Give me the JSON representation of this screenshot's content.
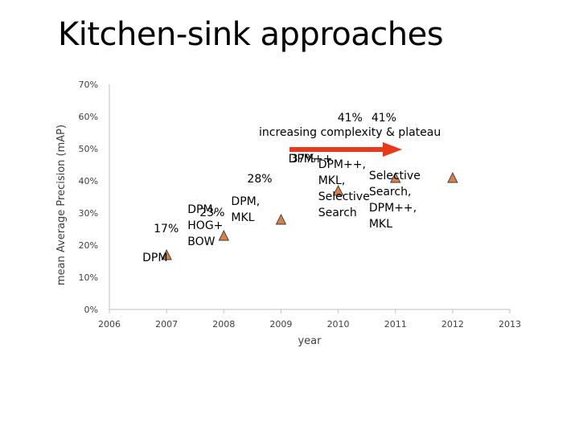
{
  "slide": {
    "title": "Kitchen-sink approaches"
  },
  "chart_data": {
    "type": "scatter",
    "title": "",
    "xlabel": "year",
    "ylabel": "mean Average Precision (mAP)",
    "xlim": [
      2006,
      2013
    ],
    "ylim": [
      0,
      70
    ],
    "x_ticks": [
      "2006",
      "2007",
      "2008",
      "2009",
      "2010",
      "2011",
      "2012",
      "2013"
    ],
    "y_ticks": [
      "0%",
      "10%",
      "20%",
      "30%",
      "40%",
      "50%",
      "60%",
      "70%"
    ],
    "grid": false,
    "marker": "triangle",
    "marker_color": "#D9804A",
    "points": [
      {
        "x": 2007,
        "y": 17,
        "value_label": "17%",
        "method": [
          "DPM"
        ]
      },
      {
        "x": 2008,
        "y": 23,
        "value_label": "23%",
        "method": [
          "DPM,",
          "HOG+",
          "BOW"
        ]
      },
      {
        "x": 2009,
        "y": 28,
        "value_label": "28%",
        "method": [
          "DPM,",
          "MKL"
        ]
      },
      {
        "x": 2010,
        "y": 37,
        "value_label": "37%",
        "method": [
          "DPM++"
        ]
      },
      {
        "x": 2011,
        "y": 41,
        "value_label": "41%",
        "method": [
          "DPM++,",
          "MKL,",
          "Selective",
          "Search"
        ]
      },
      {
        "x": 2012,
        "y": 41,
        "value_label": "41%",
        "method": [
          "Selective",
          "Search,",
          "DPM++,",
          "MKL"
        ]
      }
    ],
    "annotation": {
      "text": "increasing complexity & plateau",
      "arrow_color": "#E8391C"
    }
  }
}
